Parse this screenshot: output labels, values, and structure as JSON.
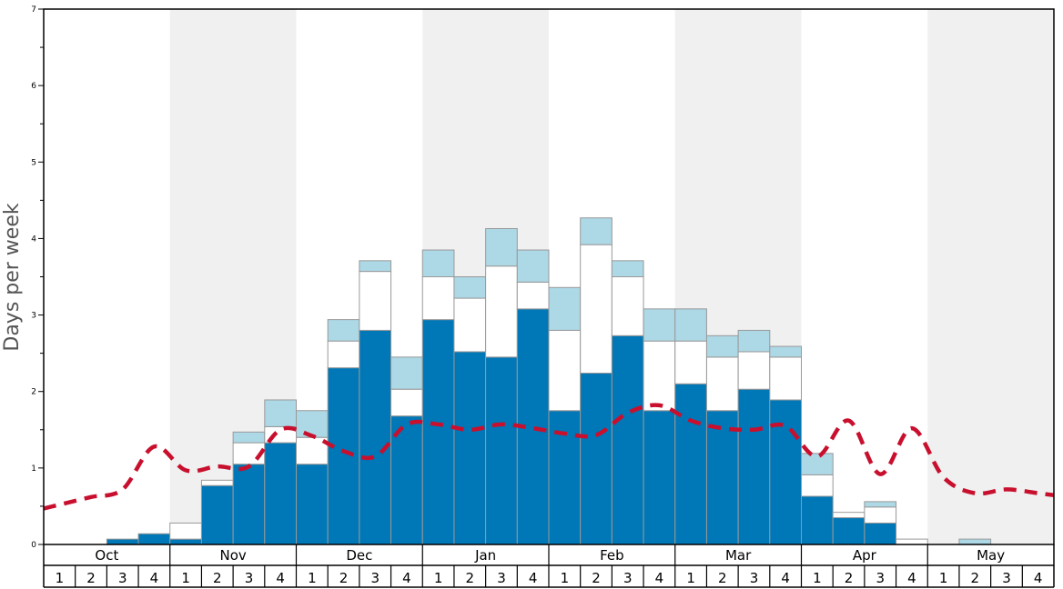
{
  "chart_data": {
    "type": "bar",
    "stacked": true,
    "title": "",
    "xlabel": "",
    "ylabel": "Days per week",
    "ylim": [
      0,
      7
    ],
    "yticks": [
      "0",
      "1",
      "2",
      "3",
      "4",
      "5",
      "6",
      "7"
    ],
    "months": [
      "Oct",
      "Nov",
      "Dec",
      "Jan",
      "Feb",
      "Mar",
      "Apr",
      "May"
    ],
    "week_labels": [
      "1",
      "2",
      "3",
      "4"
    ],
    "shaded_months": [
      "Nov",
      "Jan",
      "Mar",
      "May"
    ],
    "colors": {
      "dark": "#0077b6",
      "white": "#ffffff",
      "light": "#add8e6",
      "line": "#c8102e",
      "shade": "#f0f0f0",
      "bar_edge": "#999999"
    },
    "series": [
      {
        "values": [
          0,
          0,
          0.07,
          0.14,
          0.07,
          0.77,
          1.05,
          1.33,
          1.05,
          2.31,
          2.8,
          1.68,
          2.94,
          2.52,
          2.45,
          3.08,
          1.75,
          2.24,
          2.73,
          1.75,
          2.1,
          1.75,
          2.03,
          1.89,
          0.63,
          0.35,
          0.28,
          0,
          0,
          0,
          0,
          0
        ]
      },
      {
        "values": [
          0,
          0,
          0,
          0,
          0.21,
          0.07,
          0.28,
          0.21,
          0.35,
          0.35,
          0.77,
          0.35,
          0.56,
          0.7,
          1.19,
          0.35,
          1.05,
          1.68,
          0.77,
          0.91,
          0.56,
          0.7,
          0.49,
          0.56,
          0.28,
          0.07,
          0.21,
          0.07,
          0,
          0,
          0,
          0
        ]
      },
      {
        "values": [
          0,
          0,
          0,
          0,
          0,
          0,
          0.14,
          0.35,
          0.35,
          0.28,
          0.14,
          0.42,
          0.35,
          0.28,
          0.49,
          0.42,
          0.56,
          0.35,
          0.21,
          0.42,
          0.42,
          0.28,
          0.28,
          0.14,
          0.28,
          0,
          0.07,
          0,
          0,
          0.07,
          0,
          0
        ]
      },
      {
        "type": "line",
        "style": "dashed",
        "values": [
          0.52,
          0.62,
          0.72,
          1.28,
          0.97,
          1.02,
          1.02,
          1.5,
          1.42,
          1.22,
          1.15,
          1.57,
          1.57,
          1.5,
          1.57,
          1.52,
          1.45,
          1.43,
          1.72,
          1.82,
          1.62,
          1.52,
          1.5,
          1.55,
          1.15,
          1.62,
          0.92,
          1.52,
          0.88,
          0.67,
          0.72,
          0.67
        ]
      }
    ]
  }
}
